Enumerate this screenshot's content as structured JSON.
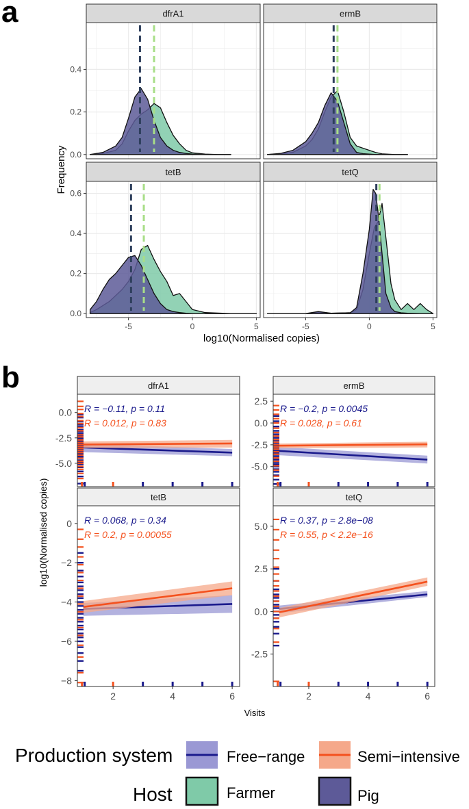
{
  "figure": {
    "panel_a_label": "a",
    "panel_b_label": "b"
  },
  "colors": {
    "farmer_fill": "#7fcaa8",
    "pig_fill": "#5d5a98",
    "farmer_vline": "#a8de88",
    "pig_vline": "#2e3f5c",
    "free_range": "#1a1a8c",
    "semi_intensive": "#f4511e",
    "free_range_ribbon": "#9a98d4",
    "semi_intensive_ribbon": "#f5a88a",
    "strip_bg": "#efefef",
    "grid": "#ebebeb"
  },
  "chart_data": [
    {
      "type": "area",
      "panel": "a",
      "title": "",
      "xlabel": "log10(Normalised copies)",
      "ylabel": "Frequency",
      "xlim": [
        -8.3,
        5.3
      ],
      "xticks": [
        -5,
        0,
        5
      ],
      "ylim_top_row": [
        -0.02,
        0.62
      ],
      "yticks_top_row": [
        0.0,
        0.2,
        0.4
      ],
      "ylim_bottom_row": [
        -0.02,
        0.66
      ],
      "yticks_bottom_row": [
        0.0,
        0.2,
        0.4,
        0.6
      ],
      "legend_title": "Host",
      "facets": [
        {
          "name": "dfrA1",
          "farmer_median": -3.0,
          "pig_median": -4.1,
          "farmer": {
            "x": [
              -8,
              -7,
              -6,
              -5.5,
              -5,
              -4.5,
              -4,
              -3.5,
              -3,
              -2.5,
              -2,
              -1.5,
              -1,
              -0.5,
              0,
              1,
              2,
              3
            ],
            "y": [
              0.0,
              0.005,
              0.02,
              0.05,
              0.11,
              0.16,
              0.19,
              0.21,
              0.24,
              0.22,
              0.15,
              0.09,
              0.05,
              0.02,
              0.008,
              0.002,
              0.0,
              0.0
            ]
          },
          "pig": {
            "x": [
              -8,
              -7,
              -6,
              -5.5,
              -5,
              -4.5,
              -4,
              -3.5,
              -3,
              -2.5,
              -2,
              -1.5,
              -1,
              -0.5,
              0,
              1,
              2,
              3
            ],
            "y": [
              0.0,
              0.01,
              0.04,
              0.08,
              0.17,
              0.27,
              0.31,
              0.26,
              0.16,
              0.08,
              0.04,
              0.02,
              0.01,
              0.005,
              0.002,
              0.0,
              0.0,
              0.0
            ]
          }
        },
        {
          "name": "ermB",
          "farmer_median": -2.5,
          "pig_median": -2.8,
          "farmer": {
            "x": [
              -8,
              -7,
              -6,
              -5,
              -4.5,
              -4,
              -3.5,
              -3,
              -2.5,
              -2,
              -1.5,
              -1,
              -0.5,
              0,
              0.5,
              1,
              2,
              3
            ],
            "y": [
              0.0,
              0.003,
              0.01,
              0.04,
              0.07,
              0.12,
              0.2,
              0.27,
              0.3,
              0.2,
              0.08,
              0.04,
              0.03,
              0.02,
              0.01,
              0.003,
              0.0,
              0.0
            ]
          },
          "pig": {
            "x": [
              -8,
              -7,
              -6,
              -5,
              -4.5,
              -4,
              -3.5,
              -3,
              -2.5,
              -2,
              -1.5,
              -1,
              -0.5,
              0,
              0.5,
              1,
              2,
              3
            ],
            "y": [
              0.0,
              0.005,
              0.02,
              0.06,
              0.1,
              0.15,
              0.23,
              0.29,
              0.25,
              0.15,
              0.05,
              0.01,
              0.004,
              0.002,
              0.0,
              0.0,
              0.0,
              0.0
            ]
          }
        },
        {
          "name": "tetB",
          "farmer_median": -3.8,
          "pig_median": -4.8,
          "farmer": {
            "x": [
              -8,
              -7.5,
              -7,
              -6.5,
              -6,
              -5.5,
              -5,
              -4.5,
              -4,
              -3.5,
              -3,
              -2.5,
              -2,
              -1.5,
              -1,
              -0.5,
              0,
              1,
              3,
              5
            ],
            "y": [
              0.005,
              0.02,
              0.04,
              0.06,
              0.09,
              0.12,
              0.16,
              0.22,
              0.32,
              0.34,
              0.27,
              0.21,
              0.16,
              0.09,
              0.1,
              0.06,
              0.02,
              0.005,
              0.0,
              0.0
            ]
          },
          "pig": {
            "x": [
              -8,
              -7.5,
              -7,
              -6.5,
              -6,
              -5.5,
              -5,
              -4.5,
              -4,
              -3.5,
              -3,
              -2.5,
              -2,
              -1.5,
              -1,
              -0.5,
              0,
              1,
              3,
              5
            ],
            "y": [
              0.02,
              0.06,
              0.12,
              0.17,
              0.2,
              0.24,
              0.28,
              0.29,
              0.24,
              0.17,
              0.1,
              0.05,
              0.02,
              0.01,
              0.005,
              0.002,
              0.0,
              0.0,
              0.0,
              0.0
            ]
          }
        },
        {
          "name": "tetQ",
          "farmer_median": 0.8,
          "pig_median": 0.55,
          "farmer": {
            "x": [
              -8,
              -5,
              -4,
              -3,
              -1.5,
              -1,
              -0.5,
              0,
              0.4,
              0.7,
              1,
              1.3,
              1.7,
              2,
              2.5,
              3,
              3.5,
              4,
              4.5,
              5
            ],
            "y": [
              0.0,
              0.0,
              0.005,
              0.002,
              0.004,
              0.02,
              0.12,
              0.3,
              0.43,
              0.46,
              0.55,
              0.38,
              0.15,
              0.07,
              0.02,
              0.05,
              0.02,
              0.05,
              0.02,
              0.0
            ]
          },
          "pig": {
            "x": [
              -8,
              -5,
              -4,
              -3,
              -1.5,
              -1,
              -0.5,
              0,
              0.3,
              0.5,
              0.7,
              1,
              1.3,
              1.7,
              2,
              2.5,
              3,
              4,
              5
            ],
            "y": [
              0.0,
              0.0,
              0.01,
              0.002,
              0.004,
              0.03,
              0.2,
              0.42,
              0.62,
              0.6,
              0.5,
              0.3,
              0.1,
              0.03,
              0.01,
              0.004,
              0.002,
              0.0,
              0.0
            ]
          }
        }
      ]
    },
    {
      "type": "line",
      "panel": "b",
      "title": "",
      "xlabel": "Visits",
      "ylabel": "log10(Normalised copies)",
      "xlim": [
        0.8,
        6.25
      ],
      "xticks": [
        2,
        4,
        6
      ],
      "legend_title": "Production system",
      "rug_x": {
        "free_range": [
          1,
          3,
          4,
          5,
          6
        ],
        "semi_intensive": [
          1,
          2
        ]
      },
      "facets": [
        {
          "name": "dfrA1",
          "ylim": [
            -7.3,
            1.8
          ],
          "yticks": [
            0.0,
            -2.5,
            -5.0
          ],
          "ytick_labels": [
            "0.0",
            "-2.5",
            "-5.0"
          ],
          "free_range_line": {
            "x": [
              1,
              6
            ],
            "y": [
              -3.45,
              -3.95
            ],
            "ci_lo": [
              -3.9,
              -4.3
            ],
            "ci_hi": [
              -3.05,
              -3.6
            ]
          },
          "semi_intensive_line": {
            "x": [
              1,
              6
            ],
            "y": [
              -3.15,
              -3.05
            ],
            "ci_lo": [
              -3.5,
              -3.45
            ],
            "ci_hi": [
              -2.85,
              -2.7
            ]
          },
          "stats_free_range": "R = −0.11, p = 0.11",
          "stats_semi_intensive": "R = 0.012, p = 0.83",
          "rug_free_range": [
            -0.2,
            -0.5,
            -0.9,
            -1.2,
            -1.4,
            -1.7,
            -1.9,
            -2.1,
            -2.3,
            -2.5,
            -2.6,
            -2.8,
            -2.9,
            -3.0,
            -3.1,
            -3.2,
            -3.3,
            -3.4,
            -3.5,
            -3.6,
            -3.7,
            -3.8,
            -3.9,
            -4.0,
            -4.1,
            -4.2,
            -4.3,
            -4.4,
            -4.5,
            -4.7,
            -4.9,
            -5.1,
            -5.4,
            -5.8,
            -6.3,
            -7.0
          ],
          "rug_semi_intensive": [
            1.1,
            0.6,
            0.3,
            -0.1,
            -0.4,
            -0.8,
            -1.1,
            -1.5,
            -1.8,
            -2.2,
            -2.4,
            -2.7,
            -2.95,
            -3.15,
            -3.35,
            -3.55,
            -3.75,
            -3.95,
            -4.2,
            -4.5,
            -4.8,
            -5.0,
            -5.3,
            -5.6,
            -6.0,
            -6.5
          ]
        },
        {
          "name": "ermB",
          "ylim": [
            -7.3,
            3.3
          ],
          "yticks": [
            2.5,
            0.0,
            -2.5,
            -5.0
          ],
          "ytick_labels": [
            "2.5",
            "0.0",
            "-2.5",
            "-5.0"
          ],
          "free_range_line": {
            "x": [
              1,
              6
            ],
            "y": [
              -3.2,
              -4.2
            ],
            "ci_lo": [
              -3.7,
              -4.65
            ],
            "ci_hi": [
              -2.75,
              -3.75
            ]
          },
          "semi_intensive_line": {
            "x": [
              1,
              6
            ],
            "y": [
              -2.6,
              -2.45
            ],
            "ci_lo": [
              -2.9,
              -2.8
            ],
            "ci_hi": [
              -2.35,
              -2.15
            ]
          },
          "stats_free_range": "R = −0.2, p = 0.0045",
          "stats_semi_intensive": "R = 0.028, p = 0.61",
          "rug_free_range": [
            0.8,
            0.2,
            -0.4,
            -0.9,
            -1.3,
            -1.7,
            -2.0,
            -2.3,
            -2.6,
            -2.8,
            -3.0,
            -3.2,
            -3.4,
            -3.6,
            -3.8,
            -4.0,
            -4.2,
            -4.4,
            -4.6,
            -4.8,
            -5.0,
            -5.3,
            -5.6,
            -6.0,
            -6.5,
            -7.0
          ],
          "rug_semi_intensive": [
            2.0,
            1.5,
            1.0,
            0.5,
            0.0,
            -0.6,
            -1.1,
            -1.5,
            -1.9,
            -2.2,
            -2.5,
            -2.75,
            -3.0,
            -3.3,
            -3.6,
            -4.0,
            -4.4,
            -4.9,
            -5.4,
            -6.1
          ]
        },
        {
          "name": "tetB",
          "ylim": [
            -8.3,
            0.9
          ],
          "yticks": [
            0,
            -2,
            -4,
            -6,
            -8
          ],
          "ytick_labels": [
            "0",
            "−2",
            "−4",
            "−6",
            "−8"
          ],
          "free_range_line": {
            "x": [
              1,
              6
            ],
            "y": [
              -4.35,
              -4.1
            ],
            "ci_lo": [
              -4.7,
              -4.55
            ],
            "ci_hi": [
              -4.05,
              -3.65
            ]
          },
          "semi_intensive_line": {
            "x": [
              1,
              6
            ],
            "y": [
              -4.25,
              -3.3
            ],
            "ci_lo": [
              -4.55,
              -3.65
            ],
            "ci_hi": [
              -3.95,
              -2.95
            ]
          },
          "stats_free_range": "R = 0.068, p = 0.34",
          "stats_semi_intensive": "R = 0.2, p = 0.00055",
          "rug_free_range": [
            -1.5,
            -2.0,
            -2.4,
            -2.7,
            -3.0,
            -3.2,
            -3.4,
            -3.6,
            -3.8,
            -4.0,
            -4.2,
            -4.4,
            -4.6,
            -4.8,
            -5.0,
            -5.2,
            -5.4,
            -5.6,
            -5.8,
            -6.0,
            -6.3,
            -6.6,
            -7.0,
            -7.5
          ],
          "rug_semi_intensive": [
            -0.3,
            -0.8,
            -1.2,
            -1.7,
            -2.1,
            -2.5,
            -2.9,
            -3.3,
            -3.7,
            -4.1,
            -4.5,
            -4.9,
            -5.3,
            -5.7,
            -6.2,
            -6.8,
            -7.6,
            -8.1
          ]
        },
        {
          "name": "tetQ",
          "ylim": [
            -4.4,
            6.2
          ],
          "yticks": [
            5.0,
            2.5,
            0.0,
            -2.5
          ],
          "ytick_labels": [
            "5.0",
            "2.5",
            "0.0",
            "-2.5"
          ],
          "free_range_line": {
            "x": [
              1,
              6
            ],
            "y": [
              0.15,
              1.0
            ],
            "ci_lo": [
              -0.1,
              0.85
            ],
            "ci_hi": [
              0.35,
              1.2
            ]
          },
          "semi_intensive_line": {
            "x": [
              1,
              6
            ],
            "y": [
              -0.05,
              1.75
            ],
            "ci_lo": [
              -0.35,
              1.5
            ],
            "ci_hi": [
              0.2,
              2.0
            ]
          },
          "stats_free_range": "R = 0.37, p = 2.8e−08",
          "stats_semi_intensive": "R = 0.55, p < 2.2e−16",
          "rug_free_range": [
            2.5,
            1.8,
            1.3,
            1.0,
            0.8,
            0.6,
            0.4,
            0.2,
            0.0,
            -0.2,
            -0.4,
            -0.6,
            -0.9,
            -1.3,
            -2.0
          ],
          "rug_semi_intensive": [
            5.4,
            4.8,
            4.2,
            3.6,
            3.1,
            2.6,
            2.2,
            1.8,
            1.5,
            1.2,
            0.9,
            0.6,
            0.3,
            0.0,
            -0.4,
            -1.0,
            -1.8,
            -4.1
          ]
        }
      ]
    }
  ],
  "legend": {
    "production_title": "Production system",
    "production_items": [
      {
        "label": "Free−range",
        "key": "free_range"
      },
      {
        "label": "Semi−intensive",
        "key": "semi_intensive"
      }
    ],
    "host_title": "Host",
    "host_items": [
      {
        "label": "Farmer",
        "key": "farmer"
      },
      {
        "label": "Pig",
        "key": "pig"
      }
    ]
  }
}
